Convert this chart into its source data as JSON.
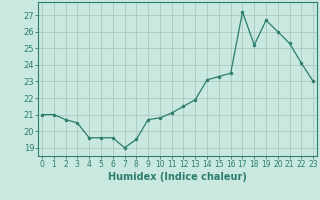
{
  "x": [
    0,
    1,
    2,
    3,
    4,
    5,
    6,
    7,
    8,
    9,
    10,
    11,
    12,
    13,
    14,
    15,
    16,
    17,
    18,
    19,
    20,
    21,
    22,
    23
  ],
  "y": [
    21,
    21,
    20.7,
    20.5,
    19.6,
    19.6,
    19.6,
    19.0,
    19.5,
    20.7,
    20.8,
    21.1,
    21.5,
    21.9,
    23.1,
    23.3,
    23.5,
    27.2,
    25.2,
    26.7,
    26.0,
    25.3,
    24.1,
    23.0
  ],
  "xlabel": "Humidex (Indice chaleur)",
  "ylim": [
    18.5,
    27.8
  ],
  "xlim": [
    -0.3,
    23.3
  ],
  "yticks": [
    19,
    20,
    21,
    22,
    23,
    24,
    25,
    26,
    27
  ],
  "xticks": [
    0,
    1,
    2,
    3,
    4,
    5,
    6,
    7,
    8,
    9,
    10,
    11,
    12,
    13,
    14,
    15,
    16,
    17,
    18,
    19,
    20,
    21,
    22,
    23
  ],
  "line_color": "#2d7d6e",
  "marker_color": "#2d7d6e",
  "bg_color": "#c8e8e0",
  "grid_color": "#aac8c0",
  "font_color": "#2d7d6e",
  "tick_fontsize": 5.5,
  "xlabel_fontsize": 7.0
}
